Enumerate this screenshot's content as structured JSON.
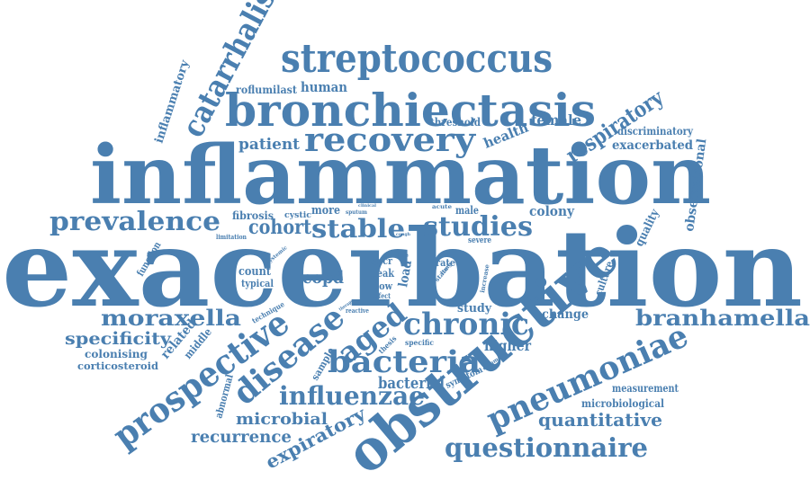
{
  "cloud": {
    "color": "#4a7fb0",
    "words": [
      {
        "id": "exacerbation",
        "text": "exacerbation"
      },
      {
        "id": "inflammation",
        "text": "inflammation"
      },
      {
        "id": "bronchiectasis",
        "text": "bronchiectasis"
      },
      {
        "id": "obstructive",
        "text": "obstructive"
      },
      {
        "id": "streptococcus",
        "text": "streptococcus"
      },
      {
        "id": "recovery",
        "text": "recovery"
      },
      {
        "id": "catarrhalis",
        "text": "catarrhalis"
      },
      {
        "id": "prevalence",
        "text": "prevalence"
      },
      {
        "id": "studies",
        "text": "studies"
      },
      {
        "id": "stable",
        "text": "stable"
      },
      {
        "id": "cohort",
        "text": "cohort"
      },
      {
        "id": "moraxella",
        "text": "moraxella"
      },
      {
        "id": "chronic",
        "text": "chronic"
      },
      {
        "id": "branhamella",
        "text": "branhamella"
      },
      {
        "id": "bacteria",
        "text": "bacteria"
      },
      {
        "id": "aged",
        "text": "aged"
      },
      {
        "id": "disease",
        "text": "disease"
      },
      {
        "id": "prospective",
        "text": "prospective"
      },
      {
        "id": "pneumoniae",
        "text": "pneumoniae"
      },
      {
        "id": "influenzae",
        "text": "influenzae"
      },
      {
        "id": "questionnaire",
        "text": "questionnaire"
      },
      {
        "id": "quantitative",
        "text": "quantitative"
      },
      {
        "id": "respiratory",
        "text": "respiratory"
      },
      {
        "id": "specificity",
        "text": "specificity"
      },
      {
        "id": "microbial",
        "text": "microbial"
      },
      {
        "id": "recurrence",
        "text": "recurrence"
      },
      {
        "id": "expiratory",
        "text": "expiratory"
      },
      {
        "id": "bacterial",
        "text": "bacterial"
      },
      {
        "id": "copd",
        "text": "copd"
      },
      {
        "id": "patient",
        "text": "patient"
      },
      {
        "id": "health",
        "text": "health"
      },
      {
        "id": "female",
        "text": "female"
      },
      {
        "id": "human",
        "text": "human"
      },
      {
        "id": "roflumilast",
        "text": "roflumilast"
      },
      {
        "id": "inflammatory",
        "text": "inflammatory"
      },
      {
        "id": "discriminatory",
        "text": "discriminatory"
      },
      {
        "id": "exacerbated",
        "text": "exacerbated"
      },
      {
        "id": "observational",
        "text": "observational"
      },
      {
        "id": "quality",
        "text": "quality"
      },
      {
        "id": "colony",
        "text": "colony"
      },
      {
        "id": "fibrosis",
        "text": "fibrosis"
      },
      {
        "id": "cystic",
        "text": "cystic"
      },
      {
        "id": "more",
        "text": "more"
      },
      {
        "id": "male",
        "text": "male"
      },
      {
        "id": "severe",
        "text": "severe"
      },
      {
        "id": "threshold",
        "text": "threshold"
      },
      {
        "id": "count",
        "text": "count"
      },
      {
        "id": "typical",
        "text": "typical"
      },
      {
        "id": "qpcr",
        "text": "qpcr"
      },
      {
        "id": "peak",
        "text": "peak"
      },
      {
        "id": "flow",
        "text": "flow"
      },
      {
        "id": "load",
        "text": "load"
      },
      {
        "id": "rate",
        "text": "rate"
      },
      {
        "id": "culture",
        "text": "culture"
      },
      {
        "id": "change",
        "text": "change"
      },
      {
        "id": "study",
        "text": "study"
      },
      {
        "id": "higher",
        "text": "higher"
      },
      {
        "id": "specific",
        "text": "specific"
      },
      {
        "id": "measurement",
        "text": "measurement"
      },
      {
        "id": "microbiological",
        "text": "microbiological"
      },
      {
        "id": "symptom",
        "text": "symptom"
      },
      {
        "id": "sample",
        "text": "sample"
      },
      {
        "id": "thesis",
        "text": "thesis"
      },
      {
        "id": "related",
        "text": "related"
      },
      {
        "id": "middle",
        "text": "middle"
      },
      {
        "id": "colonising",
        "text": "colonising"
      },
      {
        "id": "corticosteroid",
        "text": "corticosteroid"
      },
      {
        "id": "abnormal",
        "text": "abnormal"
      },
      {
        "id": "function",
        "text": "function"
      },
      {
        "id": "limitation",
        "text": "limitation"
      },
      {
        "id": "systemic",
        "text": "systemic"
      },
      {
        "id": "technique",
        "text": "technique"
      },
      {
        "id": "reactive",
        "text": "reactive"
      },
      {
        "id": "effect",
        "text": "effect"
      },
      {
        "id": "life",
        "text": "life"
      },
      {
        "id": "lung",
        "text": "lung"
      },
      {
        "id": "state",
        "text": "state"
      },
      {
        "id": "increase",
        "text": "increase"
      },
      {
        "id": "common",
        "text": "common"
      },
      {
        "id": "protein",
        "text": "protein"
      },
      {
        "id": "clinical",
        "text": "clinical"
      },
      {
        "id": "sputum",
        "text": "sputum"
      },
      {
        "id": "acute",
        "text": "acute"
      },
      {
        "id": "cough",
        "text": "cough"
      },
      {
        "id": "airway",
        "text": "airway"
      },
      {
        "id": "disease2",
        "text": "disease"
      },
      {
        "id": "therapy",
        "text": "therapy"
      },
      {
        "id": "time",
        "text": "time"
      }
    ]
  }
}
